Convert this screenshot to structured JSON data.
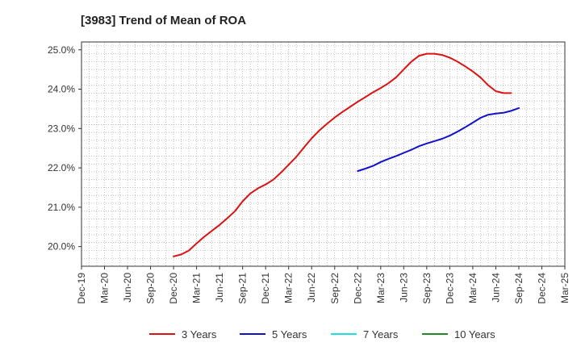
{
  "chart_data": {
    "type": "line",
    "title": "[3983]  Trend of Mean of ROA",
    "xlabel": "",
    "ylabel": "",
    "x_ticks": [
      "Dec-19",
      "Mar-20",
      "Jun-20",
      "Sep-20",
      "Dec-20",
      "Mar-21",
      "Jun-21",
      "Sep-21",
      "Dec-21",
      "Mar-22",
      "Jun-22",
      "Sep-22",
      "Dec-22",
      "Mar-23",
      "Jun-23",
      "Sep-23",
      "Dec-23",
      "Mar-24",
      "Jun-24",
      "Sep-24",
      "Dec-24",
      "Mar-25"
    ],
    "y_ticks": [
      "20.0%",
      "21.0%",
      "22.0%",
      "23.0%",
      "24.0%",
      "25.0%"
    ],
    "ylim": [
      19.5,
      25.2
    ],
    "grid": true,
    "legend_position": "bottom",
    "series": [
      {
        "name": "3 Years",
        "color": "#dd1111",
        "points": [
          [
            "Dec-20",
            19.75
          ],
          [
            "Jan-21",
            19.8
          ],
          [
            "Feb-21",
            19.9
          ],
          [
            "Mar-21",
            20.08
          ],
          [
            "Apr-21",
            20.25
          ],
          [
            "May-21",
            20.4
          ],
          [
            "Jun-21",
            20.55
          ],
          [
            "Jul-21",
            20.72
          ],
          [
            "Aug-21",
            20.9
          ],
          [
            "Sep-21",
            21.15
          ],
          [
            "Oct-21",
            21.35
          ],
          [
            "Nov-21",
            21.48
          ],
          [
            "Dec-21",
            21.58
          ],
          [
            "Jan-22",
            21.7
          ],
          [
            "Feb-22",
            21.88
          ],
          [
            "Mar-22",
            22.08
          ],
          [
            "Apr-22",
            22.28
          ],
          [
            "May-22",
            22.52
          ],
          [
            "Jun-22",
            22.75
          ],
          [
            "Jul-22",
            22.95
          ],
          [
            "Aug-22",
            23.12
          ],
          [
            "Sep-22",
            23.28
          ],
          [
            "Oct-22",
            23.42
          ],
          [
            "Nov-22",
            23.55
          ],
          [
            "Dec-22",
            23.68
          ],
          [
            "Jan-23",
            23.8
          ],
          [
            "Feb-23",
            23.92
          ],
          [
            "Mar-23",
            24.03
          ],
          [
            "Apr-23",
            24.15
          ],
          [
            "May-23",
            24.3
          ],
          [
            "Jun-23",
            24.5
          ],
          [
            "Jul-23",
            24.7
          ],
          [
            "Aug-23",
            24.85
          ],
          [
            "Sep-23",
            24.9
          ],
          [
            "Oct-23",
            24.9
          ],
          [
            "Nov-23",
            24.87
          ],
          [
            "Dec-23",
            24.8
          ],
          [
            "Jan-24",
            24.7
          ],
          [
            "Feb-24",
            24.58
          ],
          [
            "Mar-24",
            24.45
          ],
          [
            "Apr-24",
            24.3
          ],
          [
            "May-24",
            24.1
          ],
          [
            "Jun-24",
            23.95
          ],
          [
            "Jul-24",
            23.9
          ],
          [
            "Aug-24",
            23.9
          ]
        ]
      },
      {
        "name": "5 Years",
        "color": "#1111cc",
        "points": [
          [
            "Dec-22",
            21.92
          ],
          [
            "Jan-23",
            21.98
          ],
          [
            "Feb-23",
            22.05
          ],
          [
            "Mar-23",
            22.15
          ],
          [
            "Apr-23",
            22.23
          ],
          [
            "May-23",
            22.3
          ],
          [
            "Jun-23",
            22.38
          ],
          [
            "Jul-23",
            22.46
          ],
          [
            "Aug-23",
            22.55
          ],
          [
            "Sep-23",
            22.62
          ],
          [
            "Oct-23",
            22.68
          ],
          [
            "Nov-23",
            22.74
          ],
          [
            "Dec-23",
            22.82
          ],
          [
            "Jan-24",
            22.92
          ],
          [
            "Feb-24",
            23.03
          ],
          [
            "Mar-24",
            23.15
          ],
          [
            "Apr-24",
            23.27
          ],
          [
            "May-24",
            23.35
          ],
          [
            "Jun-24",
            23.38
          ],
          [
            "Jul-24",
            23.4
          ],
          [
            "Aug-24",
            23.45
          ],
          [
            "Sep-24",
            23.52
          ]
        ]
      },
      {
        "name": "7 Years",
        "color": "#22dddd",
        "points": []
      },
      {
        "name": "10 Years",
        "color": "#228822",
        "points": []
      }
    ]
  }
}
